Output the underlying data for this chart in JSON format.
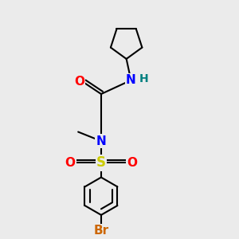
{
  "background_color": "#ebebeb",
  "atom_colors": {
    "N": "#0000ff",
    "O": "#ff0000",
    "S": "#cccc00",
    "Br": "#cc6600",
    "H": "#008080"
  },
  "bond_color": "#000000",
  "bond_width": 1.5,
  "figsize": [
    3.0,
    3.0
  ],
  "dpi": 100
}
